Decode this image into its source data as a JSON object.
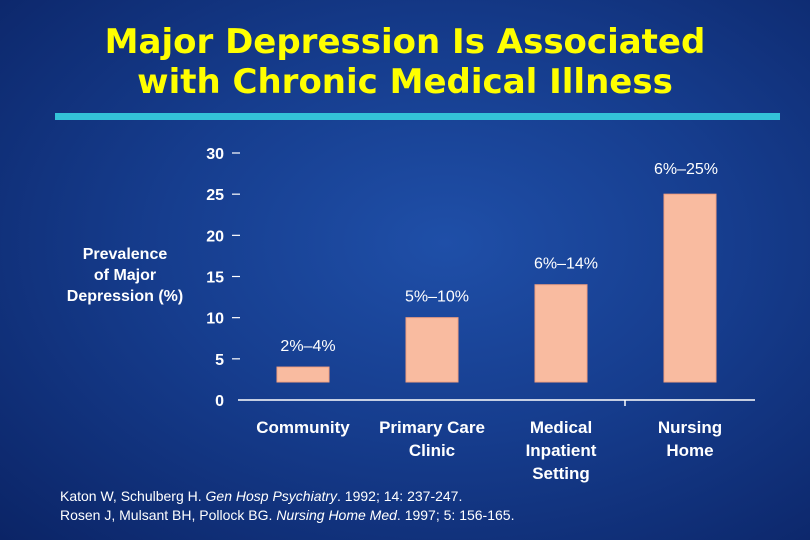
{
  "title": {
    "line1": "Major Depression Is Associated",
    "line2": "with Chronic Medical Illness"
  },
  "colors": {
    "title": "#ffff00",
    "accent_rule": "#33c3d8",
    "bar_fill": "#f9bba0",
    "bar_stroke": "#f3a080",
    "text": "#ffffff"
  },
  "chart_data": {
    "type": "bar",
    "ylabel_lines": [
      "Prevalence",
      "of Major",
      "Depression (%)"
    ],
    "ylim": [
      0,
      30
    ],
    "yticks": [
      0,
      5,
      10,
      15,
      20,
      25,
      30
    ],
    "grid": false,
    "legend": "none",
    "categories": [
      [
        "Community"
      ],
      [
        "Primary Care",
        "Clinic"
      ],
      [
        "Medical",
        "Inpatient",
        "Setting"
      ],
      [
        "Nursing",
        "Home"
      ]
    ],
    "values": [
      4,
      10,
      14,
      25
    ],
    "data_labels": [
      "2%–4%",
      "5%–10%",
      "6%–14%",
      "6%–25%"
    ]
  },
  "citation": {
    "line1": {
      "authors": "Katon W, Schulberg H. ",
      "journal": "Gen Hosp Psychiatry",
      "details": ". 1992; 14: 237-247."
    },
    "line2": {
      "authors": "Rosen J, Mulsant BH, Pollock BG. ",
      "journal": "Nursing Home Med",
      "details": ". 1997; 5: 156-165."
    }
  }
}
